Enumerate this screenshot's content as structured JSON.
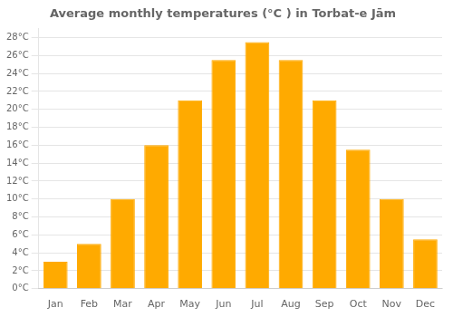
{
  "chart_data": {
    "type": "bar",
    "title": "Average monthly temperatures (°C ) in Torbat-e Jām",
    "categories": [
      "Jan",
      "Feb",
      "Mar",
      "Apr",
      "May",
      "Jun",
      "Jul",
      "Aug",
      "Sep",
      "Oct",
      "Nov",
      "Dec"
    ],
    "values": [
      3,
      5,
      10,
      16,
      21,
      25.5,
      27.5,
      25.5,
      21,
      15.5,
      10,
      5.5
    ],
    "color": "#FFAA00",
    "ylim": [
      0,
      29
    ],
    "yticks": [
      {
        "value": 0,
        "label": "0°C"
      },
      {
        "value": 2,
        "label": "2°C"
      },
      {
        "value": 4,
        "label": "4°C"
      },
      {
        "value": 6,
        "label": "6°C"
      },
      {
        "value": 8,
        "label": "8°C"
      },
      {
        "value": 10,
        "label": "10°C"
      },
      {
        "value": 12,
        "label": "12°C"
      },
      {
        "value": 14,
        "label": "14°C"
      },
      {
        "value": 16,
        "label": "16°C"
      },
      {
        "value": 18,
        "label": "18°C"
      },
      {
        "value": 20,
        "label": "20°C"
      },
      {
        "value": 22,
        "label": "22°C"
      },
      {
        "value": 24,
        "label": "24°C"
      },
      {
        "value": 26,
        "label": "26°C"
      },
      {
        "value": 28,
        "label": "28°C"
      }
    ],
    "grid": true
  }
}
